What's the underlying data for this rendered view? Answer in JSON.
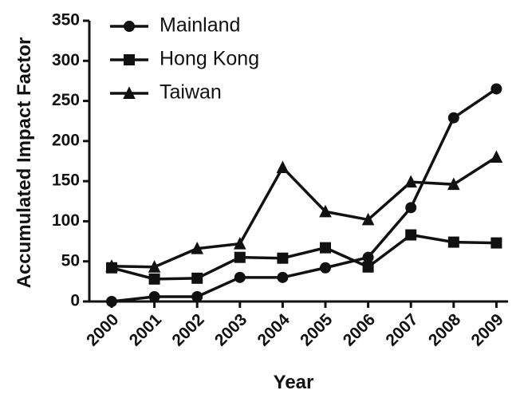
{
  "chart_data": {
    "type": "line",
    "x": [
      "2000",
      "2001",
      "2002",
      "2003",
      "2004",
      "2005",
      "2006",
      "2007",
      "2008",
      "2009"
    ],
    "series": [
      {
        "name": "Mainland",
        "marker": "circle",
        "values": [
          0,
          6,
          6,
          30,
          30,
          42,
          55,
          117,
          229,
          265
        ]
      },
      {
        "name": "Hong Kong",
        "marker": "square",
        "values": [
          42,
          28,
          29,
          55,
          54,
          67,
          43,
          83,
          74,
          73
        ]
      },
      {
        "name": "Taiwan",
        "marker": "triangle",
        "values": [
          44,
          43,
          66,
          72,
          167,
          112,
          102,
          149,
          146,
          180
        ]
      }
    ],
    "title": "",
    "xlabel": "Year",
    "ylabel": "Accumulated Impact Factor",
    "ylim": [
      0,
      350
    ],
    "yticks": [
      0,
      50,
      100,
      150,
      200,
      250,
      300,
      350
    ],
    "legend_position": "top-left",
    "grid": false,
    "color": "#111111"
  }
}
